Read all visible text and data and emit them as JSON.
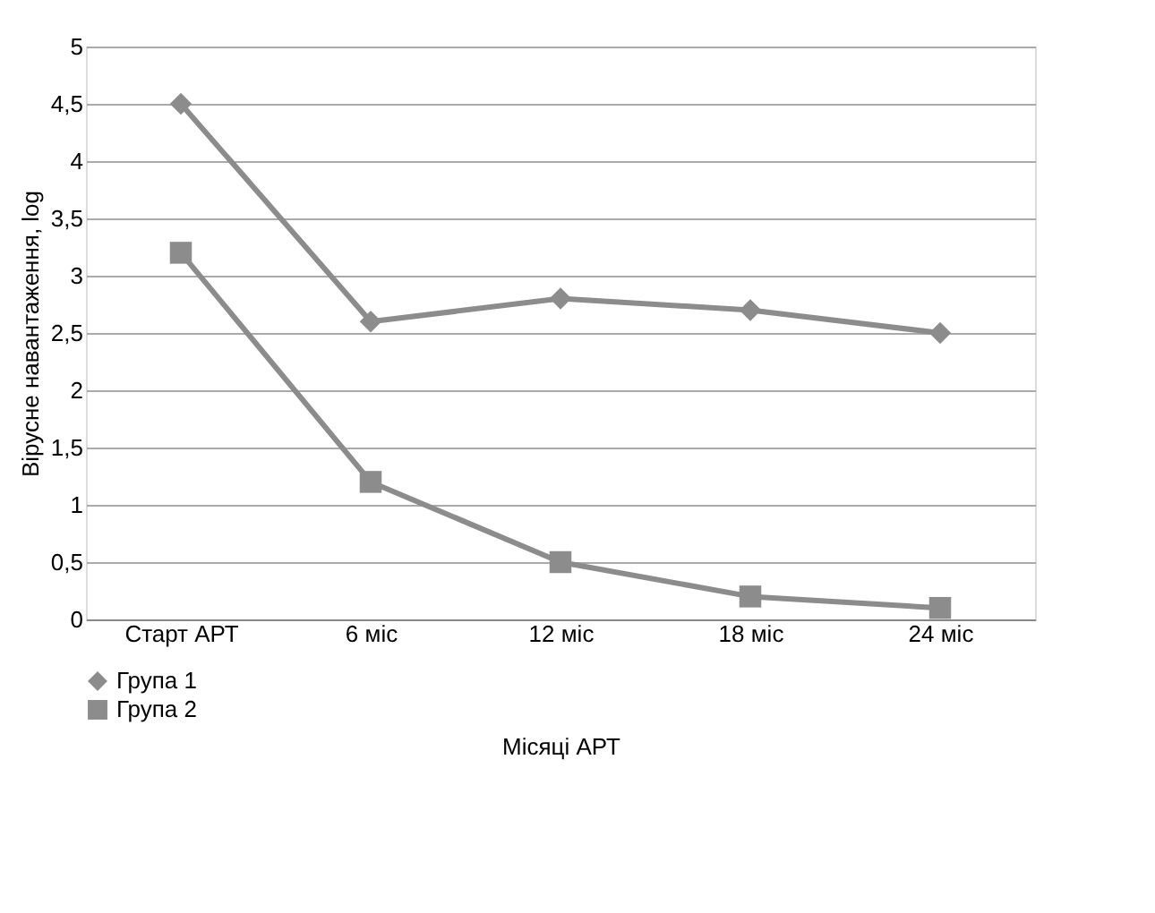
{
  "chart_data": {
    "type": "line",
    "xlabel": "Місяці АРТ",
    "ylabel": "Вірусне навантаження, log",
    "categories": [
      "Старт АРТ",
      "6 міс",
      "12 міс",
      "18 міс",
      "24 міс"
    ],
    "series": [
      {
        "name": "Група 1",
        "color": "#8c8c8c",
        "marker": "diamond",
        "values": [
          4.5,
          2.6,
          2.8,
          2.7,
          2.5
        ]
      },
      {
        "name": "Група 2",
        "color": "#8c8c8c",
        "marker": "square",
        "values": [
          3.2,
          1.2,
          0.5,
          0.2,
          0.1
        ]
      }
    ],
    "ylim": [
      0,
      5
    ],
    "yticks": [
      0,
      {
        "value": 0.5,
        "label": "0,5"
      },
      1,
      {
        "value": 1.5,
        "label": "1,5"
      },
      2,
      {
        "value": 2.5,
        "label": "2,5"
      },
      3,
      {
        "value": 3.5,
        "label": "3,5"
      },
      4,
      {
        "value": 4.5,
        "label": "4,5"
      },
      5
    ],
    "grid": "y",
    "legend": "bottom"
  }
}
